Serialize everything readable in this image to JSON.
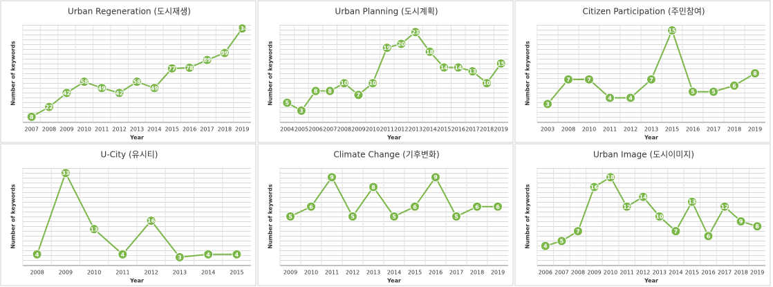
{
  "chart_data": [
    {
      "type": "line",
      "title": "Urban Regeneration (도시재생)",
      "x_label": "Year",
      "y_label": "Number of keywords",
      "color": "#7ab648",
      "categories": [
        "2007",
        "2008",
        "2009",
        "2010",
        "2011",
        "2012",
        "2013",
        "2014",
        "2015",
        "2016",
        "2017",
        "2018",
        "2019"
      ],
      "values": [
        8,
        22,
        42,
        58,
        49,
        42,
        58,
        49,
        77,
        78,
        89,
        99,
        134
      ],
      "ylim": [
        0,
        140
      ]
    },
    {
      "type": "line",
      "title": "Urban Planning (도시계획)",
      "x_label": "Year",
      "y_label": "Number of keywords",
      "color": "#7ab648",
      "categories": [
        "2004",
        "2005",
        "2006",
        "2007",
        "2008",
        "2009",
        "2010",
        "2011",
        "2012",
        "2013",
        "2014",
        "2015",
        "2016",
        "2017",
        "2018",
        "2019"
      ],
      "values": [
        5,
        3,
        8,
        8,
        10,
        7,
        10,
        19,
        20,
        23,
        18,
        14,
        14,
        13,
        10,
        15
      ],
      "ylim": [
        0,
        25
      ]
    },
    {
      "type": "line",
      "title": "Citizen Participation (주민참여)",
      "x_label": "Year",
      "y_label": "Number of keywords",
      "color": "#7ab648",
      "categories": [
        "2003",
        "2008",
        "2010",
        "2011",
        "2012",
        "2013",
        "2015",
        "2016",
        "2017",
        "2018",
        "2019"
      ],
      "values": [
        3,
        7,
        7,
        4,
        4,
        7,
        15,
        5,
        5,
        6,
        8
      ],
      "ylim": [
        0,
        16
      ]
    },
    {
      "type": "line",
      "title": "U-City (유시티)",
      "x_label": "Year",
      "y_label": "Number of keywords",
      "color": "#7ab648",
      "categories": [
        "2008",
        "2009",
        "2010",
        "2011",
        "2012",
        "2013",
        "2014",
        "2015"
      ],
      "values": [
        4,
        33,
        13,
        4,
        16,
        3,
        4,
        4
      ],
      "ylim": [
        0,
        35
      ]
    },
    {
      "type": "line",
      "title": "Climate Change (기후변화)",
      "x_label": "Year",
      "y_label": "Number of keywords",
      "color": "#7ab648",
      "categories": [
        "2009",
        "2010",
        "2011",
        "2012",
        "2013",
        "2014",
        "2015",
        "2016",
        "2017",
        "2018",
        "2019"
      ],
      "values": [
        5,
        6,
        9,
        5,
        8,
        5,
        6,
        9,
        5,
        6,
        6
      ],
      "ylim": [
        0,
        10
      ]
    },
    {
      "type": "line",
      "title": "Urban Image (도시이미지)",
      "x_label": "Year",
      "y_label": "Number of keywords",
      "color": "#7ab648",
      "categories": [
        "2006",
        "2007",
        "2008",
        "2009",
        "2010",
        "2011",
        "2012",
        "2013",
        "2014",
        "2015",
        "2016",
        "2017",
        "2018",
        "2019"
      ],
      "values": [
        4,
        5,
        7,
        16,
        18,
        12,
        14,
        10,
        7,
        13,
        6,
        12,
        9,
        8
      ],
      "ylim": [
        0,
        20
      ]
    }
  ]
}
